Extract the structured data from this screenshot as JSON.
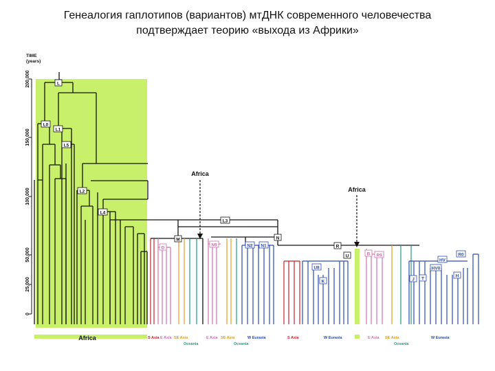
{
  "title": {
    "line1": "Генеалогия гаплотипов (вариантов) мтДНК современного человечества",
    "line2": "подтверждает теорию «выхода из Африки»"
  },
  "axis": {
    "label_line1": "TIME",
    "label_line2": "(years)",
    "ticks": [
      "200,000",
      "150,000",
      "100,000",
      "50,000",
      "25,000",
      "0"
    ]
  },
  "migration_labels": {
    "first": "Africa",
    "second": "Africa"
  },
  "nodes": [
    "L",
    "L0",
    "L1",
    "L5",
    "L2",
    "L4",
    "L3",
    "M",
    "N",
    "R",
    "U",
    "D",
    "N9",
    "N2",
    "N1",
    "U8",
    "K",
    "B",
    "R9",
    "HV",
    "HV0",
    "J",
    "T",
    "H",
    "R0"
  ],
  "regions": {
    "africa": "Africa",
    "s_asia_1": "S Asia",
    "e_asia_1": "E Asia",
    "se_asia_1": "SE Asia",
    "oceania_1": "Oceania",
    "e_asia_2": "E Asia",
    "se_asia_2": "SE Asia",
    "w_eurasia_1": "W Eurasia",
    "oceania_2": "Oceania",
    "s_asia_2": "S Asia",
    "w_eurasia_2": "W Eurasia",
    "e_asia_3": "E Asia",
    "se_asia_3": "SE Asia",
    "oceania_3": "Oceania",
    "w_eurasia_3": "W Eurasia"
  },
  "colors": {
    "africa": "#c9f06a",
    "s_asia": "#cc1e2a",
    "e_asia": "#d070b0",
    "se_asia": "#e89a1c",
    "oceania": "#1f9a86",
    "w_eurasia": "#2a4ab0",
    "tree": "#111111"
  }
}
